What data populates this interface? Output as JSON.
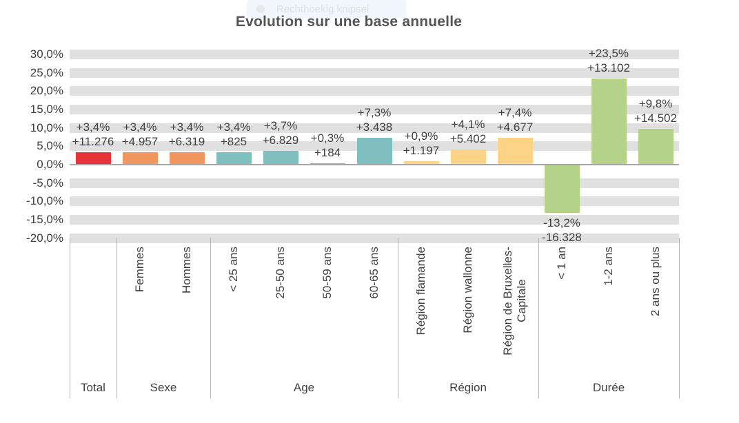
{
  "snip_overlay": {
    "label": "Rechthoekig knipsel"
  },
  "chart_data": {
    "type": "bar",
    "title": "Evolution sur une base annuelle",
    "xlabel": "",
    "ylabel": "",
    "unit": "%",
    "ylim": [
      -20,
      30
    ],
    "y_step": 5,
    "grid": "horizontal gray bands at every 5% except 0%",
    "legend_position": "none",
    "y_ticks": [
      "30,0%",
      "25,0%",
      "20,0%",
      "15,0%",
      "10,0%",
      "5,0%",
      "0,0%",
      "-5,0%",
      "-10,0%",
      "-15,0%",
      "-20,0%"
    ],
    "value_label_note": "each bar labeled with percent change and absolute change",
    "groups": [
      {
        "label": "Total",
        "color": "#e7343b",
        "bars": [
          {
            "category_lines": [],
            "category": "Total",
            "pct": 3.4,
            "pct_label": "+3,4%",
            "abs_label": "+11.276"
          }
        ]
      },
      {
        "label": "Sexe",
        "color": "#ef975e",
        "bars": [
          {
            "category_lines": [
              "Femmes"
            ],
            "category": "Femmes",
            "pct": 3.4,
            "pct_label": "+3,4%",
            "abs_label": "+4.957"
          },
          {
            "category_lines": [
              "Hommes"
            ],
            "category": "Hommes",
            "pct": 3.4,
            "pct_label": "+3,4%",
            "abs_label": "+6.319"
          }
        ]
      },
      {
        "label": "Age",
        "color": "#7fbfbf",
        "bars": [
          {
            "category_lines": [
              "< 25 ans"
            ],
            "category": "< 25 ans",
            "pct": 3.4,
            "pct_label": "+3,4%",
            "abs_label": "+825"
          },
          {
            "category_lines": [
              "25-50 ans"
            ],
            "category": "25-50 ans",
            "pct": 3.7,
            "pct_label": "+3,7%",
            "abs_label": "+6.829"
          },
          {
            "category_lines": [
              "50-59 ans"
            ],
            "category": "50-59 ans",
            "pct": 0.3,
            "pct_label": "+0,3%",
            "abs_label": "+184"
          },
          {
            "category_lines": [
              "60-65 ans"
            ],
            "category": "60-65 ans",
            "pct": 7.3,
            "pct_label": "+7,3%",
            "abs_label": "+3.438"
          }
        ]
      },
      {
        "label": "Région",
        "color": "#fdd385",
        "bars": [
          {
            "category_lines": [
              "Région flamande"
            ],
            "category": "Région flamande",
            "pct": 0.9,
            "pct_label": "+0,9%",
            "abs_label": "+1.197"
          },
          {
            "category_lines": [
              "Région wallonne"
            ],
            "category": "Région wallonne",
            "pct": 4.1,
            "pct_label": "+4,1%",
            "abs_label": "+5.402"
          },
          {
            "category_lines": [
              "Région de Bruxelles-",
              "Capitale"
            ],
            "category": "Région de Bruxelles-Capitale",
            "pct": 7.4,
            "pct_label": "+7,4%",
            "abs_label": "+4.677"
          }
        ]
      },
      {
        "label": "Durée",
        "color": "#b5d289",
        "bars": [
          {
            "category_lines": [
              "< 1 an"
            ],
            "category": "< 1 an",
            "pct": -13.2,
            "pct_label": "-13,2%",
            "abs_label": "-16.328"
          },
          {
            "category_lines": [
              "1-2 ans"
            ],
            "category": "1-2 ans",
            "pct": 23.5,
            "pct_label": "+23,5%",
            "abs_label": "+13.102"
          },
          {
            "category_lines": [
              "2 ans ou plus"
            ],
            "category": "2 ans ou plus",
            "pct": 9.8,
            "pct_label": "+9,8%",
            "abs_label": "+14.502"
          }
        ]
      }
    ]
  }
}
